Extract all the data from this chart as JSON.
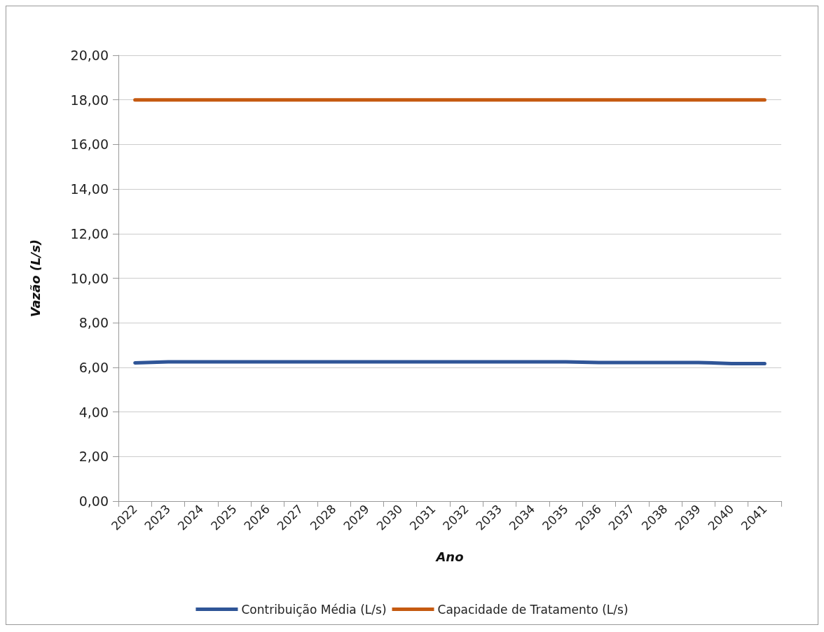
{
  "chart_data": {
    "type": "line",
    "xlabel": "Ano",
    "ylabel": "Vazão (L/s)",
    "categories": [
      "2022",
      "2023",
      "2024",
      "2025",
      "2026",
      "2027",
      "2028",
      "2029",
      "2030",
      "2031",
      "2032",
      "2033",
      "2034",
      "2035",
      "2036",
      "2037",
      "2038",
      "2039",
      "2040",
      "2041"
    ],
    "series": [
      {
        "name": "Contribuição Média (L/s)",
        "color": "#2f5597",
        "values": [
          6.2,
          6.25,
          6.25,
          6.25,
          6.25,
          6.25,
          6.25,
          6.25,
          6.25,
          6.25,
          6.25,
          6.25,
          6.25,
          6.25,
          6.22,
          6.22,
          6.22,
          6.22,
          6.17,
          6.17
        ]
      },
      {
        "name": "Capacidade de Tratamento (L/s)",
        "color": "#c55a11",
        "values": [
          18,
          18,
          18,
          18,
          18,
          18,
          18,
          18,
          18,
          18,
          18,
          18,
          18,
          18,
          18,
          18,
          18,
          18,
          18,
          18
        ]
      }
    ],
    "ylim": [
      0,
      20
    ],
    "yticks": [
      {
        "value": 0,
        "label": "0,00"
      },
      {
        "value": 2,
        "label": "2,00"
      },
      {
        "value": 4,
        "label": "4,00"
      },
      {
        "value": 6,
        "label": "6,00"
      },
      {
        "value": 8,
        "label": "8,00"
      },
      {
        "value": 10,
        "label": "10,00"
      },
      {
        "value": 12,
        "label": "12,00"
      },
      {
        "value": 14,
        "label": "14,00"
      },
      {
        "value": 16,
        "label": "16,00"
      },
      {
        "value": 18,
        "label": "18,00"
      },
      {
        "value": 20,
        "label": "20,00"
      }
    ],
    "grid": "y",
    "legend": "bottom",
    "marker": "none",
    "line_style": "solid"
  }
}
